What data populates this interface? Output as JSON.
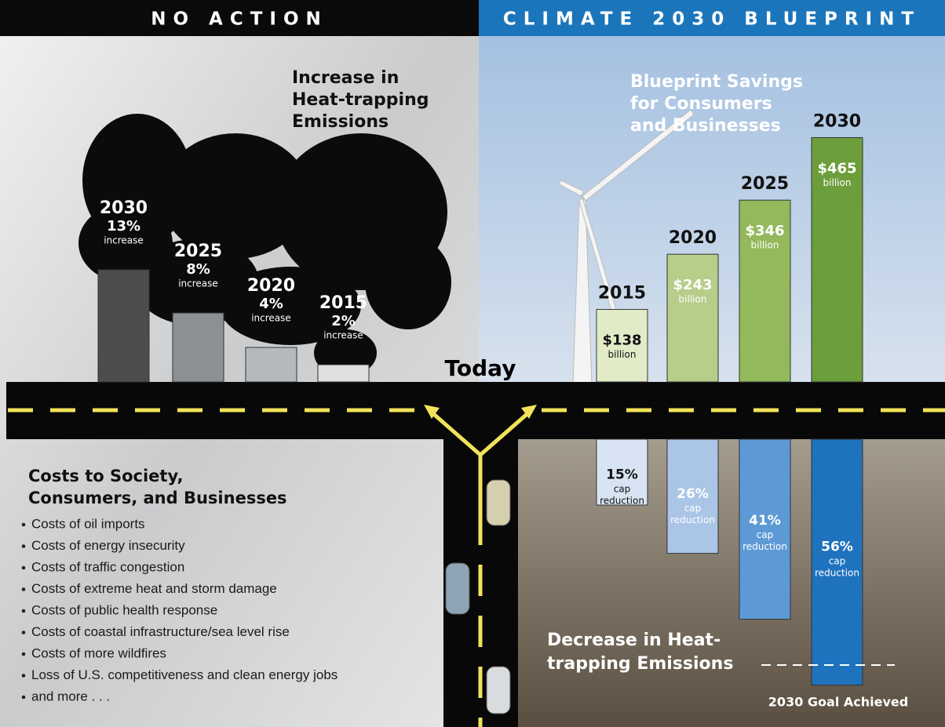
{
  "header": {
    "left": "NO ACTION",
    "right": "CLIMATE 2030 BLUEPRINT"
  },
  "today": "Today",
  "costs": {
    "title": [
      "Costs to Society,",
      "Consumers, and Businesses"
    ],
    "items": [
      "Costs of oil imports",
      "Costs of energy insecurity",
      "Costs of traffic congestion",
      "Costs of extreme heat and storm damage",
      "Costs of public health response",
      "Costs of coastal infrastructure/sea level rise",
      "Costs of more wildfires",
      "Loss of U.S. competitiveness and clean energy jobs",
      "and more . . ."
    ]
  },
  "chart_data": [
    {
      "type": "bar",
      "title": [
        "Increase in",
        "Heat-trapping",
        "Emissions"
      ],
      "categories": [
        "2030",
        "2025",
        "2020",
        "2015"
      ],
      "values": [
        13,
        8,
        4,
        2
      ],
      "value_labels": [
        "13%",
        "8%",
        "4%",
        "2%"
      ],
      "value_note": "increase",
      "colors": [
        "#4b4c4e",
        "#8b9094",
        "#b6b9bc",
        "#dedfe0"
      ]
    },
    {
      "type": "bar",
      "title": [
        "Blueprint Savings",
        "for Consumers",
        "and Businesses"
      ],
      "categories": [
        "2015",
        "2020",
        "2025",
        "2030"
      ],
      "values": [
        138,
        243,
        346,
        465
      ],
      "value_labels": [
        "$138",
        "$243",
        "$346",
        "$465"
      ],
      "value_note": "billion",
      "colors": [
        "#e2ebc8",
        "#b7cd8a",
        "#94b95c",
        "#6c9e3b"
      ]
    },
    {
      "type": "bar",
      "title": [
        "Decrease in Heat-",
        "trapping Emissions"
      ],
      "categories": [
        "2015",
        "2020",
        "2025",
        "2030"
      ],
      "values": [
        15,
        26,
        41,
        56
      ],
      "value_labels": [
        "15%",
        "26%",
        "41%",
        "56%"
      ],
      "value_note": "cap reduction",
      "colors": [
        "#d8e4f3",
        "#abc5e6",
        "#5d9ad5",
        "#1f72bd"
      ],
      "annotation": "2030 Goal Achieved"
    }
  ]
}
